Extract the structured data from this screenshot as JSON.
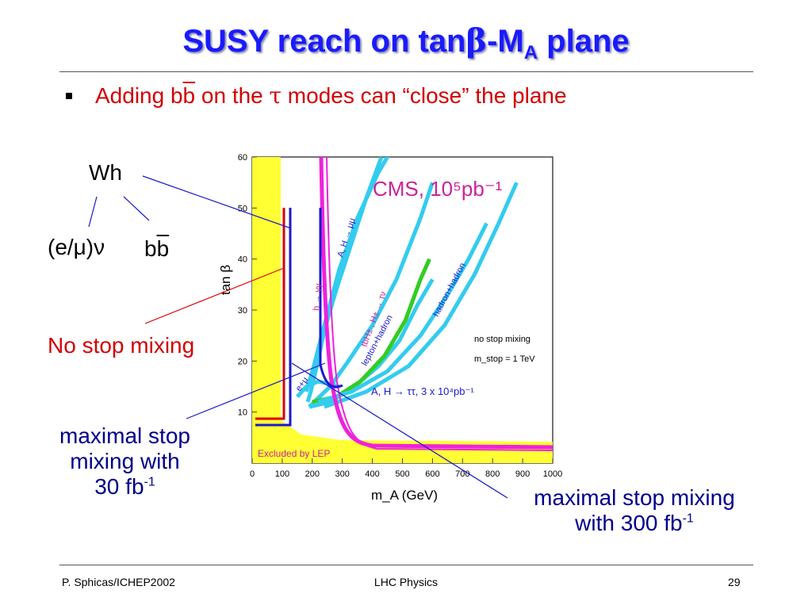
{
  "slide": {
    "title_main": "SUSY reach on tan",
    "title_beta": "β",
    "title_dash": "-M",
    "title_sub": "A",
    "title_end": " plane",
    "bullet_pre": "Adding b",
    "bullet_bbar": "b",
    "bullet_mid": " on the ",
    "bullet_tau": "τ",
    "bullet_post": " modes can “close” the plane",
    "footer_left": "P. Sphicas/ICHEP2002",
    "footer_center": "LHC Physics",
    "footer_right": "29"
  },
  "annotations": {
    "wh": "Wh",
    "lepnu": "(e/μ)ν",
    "bb_b1": "b",
    "bb_b2": "b",
    "no_stop": "No stop mixing",
    "max30_l1": "maximal stop",
    "max30_l2": "mixing with",
    "max30_l3": "30 fb",
    "max30_sup": "-1",
    "max300_l1": "maximal stop mixing",
    "max300_l2": "with 300 fb",
    "max300_sup": "-1"
  },
  "colors": {
    "title": "#1a1aff",
    "bullet": "#d40000",
    "excluded": "#ffff33",
    "cyan": "#33ccee",
    "magenta": "#ee22dd",
    "green": "#33cc22",
    "no_stop_red": "#dd0000",
    "max_blue": "#1a1acc"
  },
  "chart_data": {
    "type": "line",
    "xlabel": "m_A (GeV)",
    "ylabel": "tan β",
    "xlim": [
      0,
      1000
    ],
    "ylim": [
      0,
      60
    ],
    "xticks": [
      0,
      100,
      200,
      300,
      400,
      500,
      600,
      700,
      800,
      900,
      1000
    ],
    "yticks": [
      10,
      20,
      30,
      40,
      50,
      60
    ],
    "annotations": {
      "cms": "CMS,  10⁵pb⁻¹",
      "excluded": "Excluded by LEP",
      "legend_1": "no stop mixing",
      "legend_2": "m_stop = 1 TeV",
      "tt_label": "A, H → ττ, 3 x 10⁴pb⁻¹",
      "mumu": "A, H → μμ",
      "gamgam": "h → γγ",
      "taunu": "tbH± , H± → τν",
      "lephad": "lepton+hadron",
      "hadhad": "hadron+hadron",
      "emu": "e+μ"
    },
    "series": [
      {
        "name": "A, H → μμ",
        "color": "#33ccee",
        "x": [
          180,
          205,
          240,
          290,
          350,
          420,
          470
        ],
        "y": [
          14,
          19,
          27,
          38,
          48,
          57,
          62
        ]
      },
      {
        "name": "h → γγ",
        "color": "#33ccee",
        "x": [
          185,
          195,
          215,
          240,
          280,
          330,
          380,
          430
        ],
        "y": [
          12,
          14,
          19,
          26,
          34,
          43,
          52,
          60
        ]
      },
      {
        "name": "tbH± , H± → τν",
        "color": "#33ccee",
        "x": [
          190,
          215,
          260,
          320,
          400,
          480,
          560,
          600
        ],
        "y": [
          11,
          12.5,
          15,
          20,
          27,
          36,
          48,
          55
        ]
      },
      {
        "name": "lepton+hadron",
        "color": "#33ccee",
        "x": [
          190,
          260,
          340,
          420,
          490,
          550,
          600
        ],
        "y": [
          11,
          12,
          15,
          19,
          24,
          31,
          36
        ]
      },
      {
        "name": "lepton+hadron",
        "color": "#33cc22",
        "x": [
          200,
          280,
          360,
          440,
          510,
          560,
          590
        ],
        "y": [
          12,
          13,
          16,
          21,
          28,
          36,
          40
        ]
      },
      {
        "name": "hadron+hadron",
        "color": "#33ccee",
        "x": [
          220,
          330,
          450,
          560,
          650,
          720,
          780
        ],
        "y": [
          12,
          14,
          18,
          25,
          33,
          40,
          47
        ]
      },
      {
        "name": "hadron+hadron",
        "color": "#33ccee",
        "x": [
          240,
          380,
          520,
          640,
          740,
          820,
          880
        ],
        "y": [
          11,
          14,
          19,
          27,
          37,
          47,
          55
        ]
      },
      {
        "name": "e+μ",
        "color": "#33ccee",
        "x": [
          150,
          180,
          220,
          260,
          290
        ],
        "y": [
          13,
          15,
          16,
          15.5,
          15
        ]
      }
    ]
  }
}
